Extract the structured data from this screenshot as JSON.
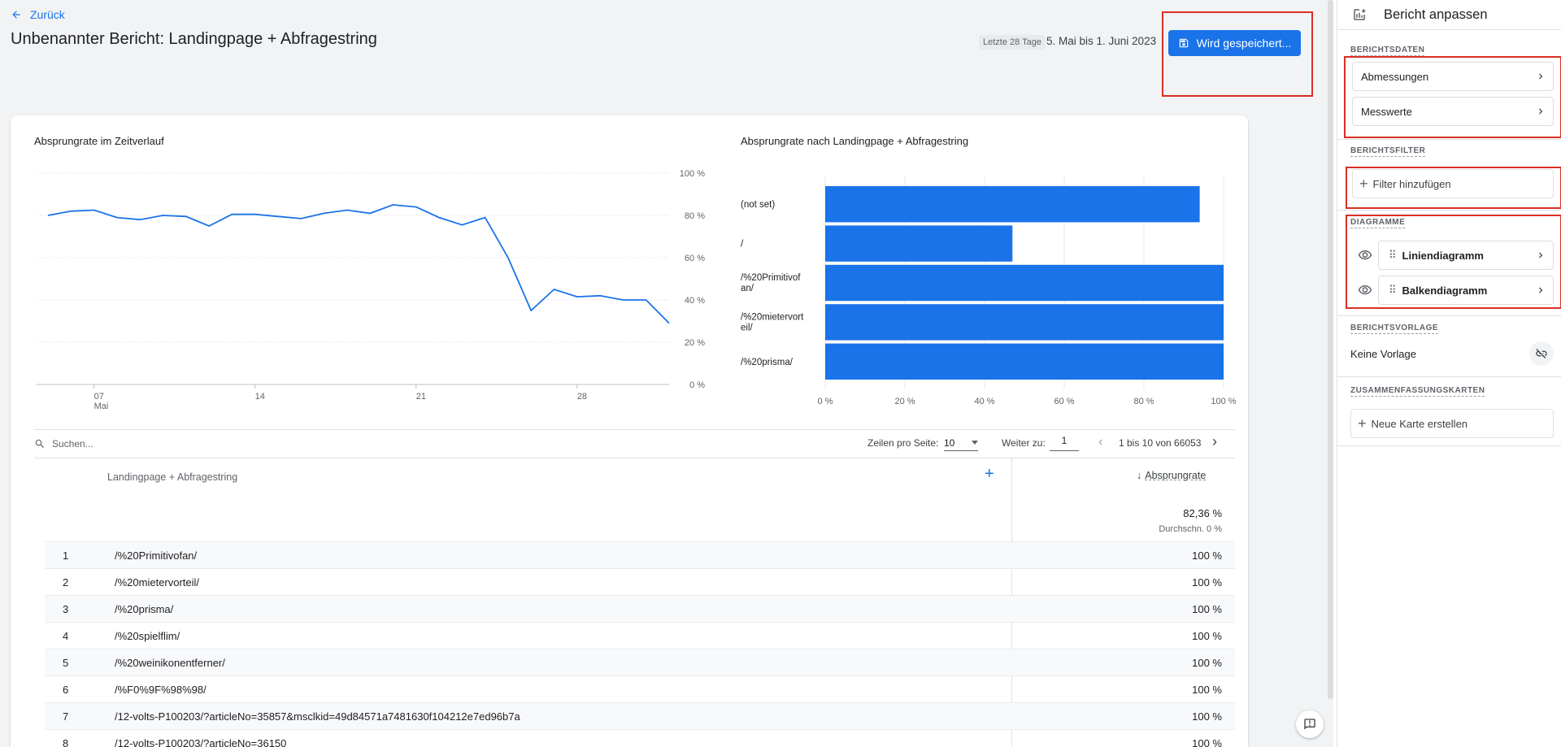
{
  "header": {
    "back_label": "Zurück",
    "report_title": "Unbenannter Bericht: Landingpage + Abfragestring",
    "date_chip": "Letzte 28 Tage",
    "date_range": "5. Mai bis 1. Juni 2023",
    "save_label": "Wird gespeichert..."
  },
  "line_chart": {
    "title": "Absprungrate im Zeitverlauf",
    "y_ticks": [
      "100 %",
      "80 %",
      "60 %",
      "40 %",
      "20 %",
      "0 %"
    ],
    "x_ticks": [
      "07",
      "14",
      "21",
      "28"
    ],
    "x_sub": "Mai"
  },
  "bar_chart": {
    "title": "Absprungrate nach Landingpage + Abfragestring",
    "categories": [
      "(not set)",
      "/",
      "/%20Primitivofan/",
      "/%20mietervorteil/",
      "/%20prisma/"
    ],
    "x_ticks": [
      "0 %",
      "20 %",
      "40 %",
      "60 %",
      "80 %",
      "100 %"
    ]
  },
  "chart_data": [
    {
      "type": "line",
      "title": "Absprungrate im Zeitverlauf",
      "x": [
        "05.05",
        "06.05",
        "07.05",
        "08.05",
        "09.05",
        "10.05",
        "11.05",
        "12.05",
        "13.05",
        "14.05",
        "15.05",
        "16.05",
        "17.05",
        "18.05",
        "19.05",
        "20.05",
        "21.05",
        "22.05",
        "23.05",
        "24.05",
        "25.05",
        "26.05",
        "27.05",
        "28.05",
        "29.05",
        "30.05",
        "31.05",
        "01.06"
      ],
      "series": [
        {
          "values": [
            80,
            82,
            82.5,
            79,
            78,
            80,
            79.5,
            75,
            80.5,
            80.5,
            79.5,
            78.5,
            81,
            82.5,
            81,
            85,
            84,
            79,
            75.5,
            79,
            60,
            35,
            45,
            41.5,
            42,
            40,
            40,
            29
          ]
        }
      ],
      "ylim": [
        0,
        100
      ]
    },
    {
      "type": "bar",
      "title": "Absprungrate nach Landingpage + Abfragestring",
      "categories": [
        "(not set)",
        "/",
        "/%20Primitivofan/",
        "/%20mietervorteil/",
        "/%20prisma/"
      ],
      "values": [
        94,
        47,
        100,
        100,
        100
      ],
      "xlim": [
        0,
        100
      ]
    }
  ],
  "table": {
    "search_placeholder": "Suchen...",
    "rows_per_page_label": "Zeilen pro Seite:",
    "rows_per_page": "10",
    "goto_label": "Weiter zu:",
    "goto_value": "1",
    "pagination": "1 bis 10 von 66053",
    "col_dimension": "Landingpage + Abfragestring",
    "col_metric": "Absprungrate",
    "total_value": "82,36 %",
    "total_avg": "Durchschn. 0 %",
    "rows": [
      {
        "idx": "1",
        "page": "/%20Primitivofan/",
        "value": "100 %"
      },
      {
        "idx": "2",
        "page": "/%20mietervorteil/",
        "value": "100 %"
      },
      {
        "idx": "3",
        "page": "/%20prisma/",
        "value": "100 %"
      },
      {
        "idx": "4",
        "page": "/%20spielflim/",
        "value": "100 %"
      },
      {
        "idx": "5",
        "page": "/%20weinikonentferner/",
        "value": "100 %"
      },
      {
        "idx": "6",
        "page": "/%F0%9F%98%98/",
        "value": "100 %"
      },
      {
        "idx": "7",
        "page": "/12-volts-P100203/?articleNo=35857&msclkid=49d84571a7481630f104212e7ed96b7a",
        "value": "100 %"
      },
      {
        "idx": "8",
        "page": "/12-volts-P100203/?articleNo=36150",
        "value": "100 %"
      }
    ]
  },
  "panel": {
    "title": "Bericht anpassen",
    "sec_data": "BERICHTSDATEN",
    "dimensions": "Abmessungen",
    "metrics": "Messwerte",
    "sec_filter": "BERICHTSFILTER",
    "add_filter": "Filter hinzufügen",
    "sec_charts": "DIAGRAMME",
    "chart1": "Liniendiagramm",
    "chart2": "Balkendiagramm",
    "sec_template": "BERICHTSVORLAGE",
    "template_value": "Keine Vorlage",
    "sec_summary": "ZUSAMMENFASSUNGSKARTEN",
    "new_card": "Neue Karte erstellen"
  },
  "colors": {
    "accent": "#1a73e8",
    "highlight": "#d93025"
  }
}
